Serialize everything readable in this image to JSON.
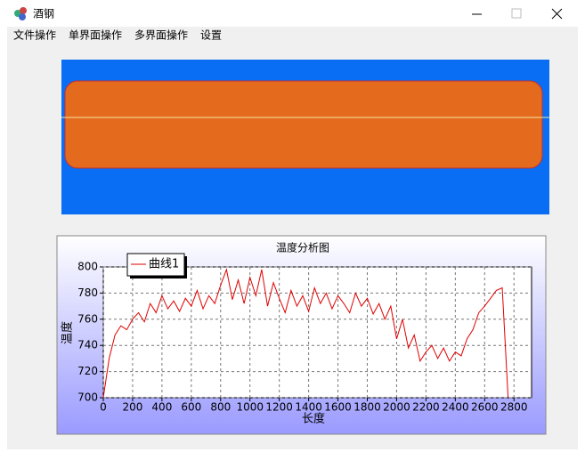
{
  "window": {
    "title": "酒钢",
    "menu": [
      "文件操作",
      "单界面操作",
      "多界面操作",
      "设置"
    ]
  },
  "chart_data": {
    "type": "line",
    "title": "温度分析图",
    "x_label": "长度",
    "y_label": "温度",
    "xlim": [
      0,
      2920
    ],
    "ylim": [
      700,
      800
    ],
    "xticks": [
      0,
      200,
      400,
      600,
      800,
      1000,
      1200,
      1400,
      1600,
      1800,
      2000,
      2200,
      2400,
      2600,
      2800
    ],
    "yticks": [
      700,
      720,
      740,
      760,
      780,
      800
    ],
    "grid": true,
    "x": [
      0,
      40,
      80,
      120,
      160,
      200,
      240,
      280,
      320,
      360,
      400,
      440,
      480,
      520,
      560,
      600,
      640,
      680,
      720,
      760,
      800,
      840,
      880,
      920,
      960,
      1000,
      1040,
      1080,
      1120,
      1160,
      1200,
      1240,
      1280,
      1320,
      1360,
      1400,
      1440,
      1480,
      1520,
      1560,
      1600,
      1640,
      1680,
      1720,
      1760,
      1800,
      1840,
      1880,
      1920,
      1960,
      2000,
      2040,
      2080,
      2120,
      2160,
      2200,
      2240,
      2280,
      2320,
      2360,
      2400,
      2440,
      2480,
      2520,
      2560,
      2600,
      2640,
      2680,
      2720,
      2760
    ],
    "series": [
      {
        "name": "曲线1",
        "color": "#e00000",
        "values": [
          700,
          730,
          748,
          755,
          752,
          760,
          765,
          758,
          772,
          765,
          778,
          768,
          774,
          766,
          776,
          770,
          782,
          768,
          778,
          772,
          786,
          798,
          775,
          790,
          772,
          792,
          778,
          798,
          770,
          788,
          776,
          765,
          782,
          770,
          778,
          766,
          784,
          772,
          780,
          768,
          778,
          772,
          765,
          780,
          770,
          776,
          764,
          772,
          760,
          770,
          745,
          760,
          738,
          748,
          728,
          735,
          740,
          730,
          738,
          728,
          735,
          732,
          745,
          752,
          765,
          770,
          776,
          782,
          784,
          700
        ]
      }
    ]
  }
}
